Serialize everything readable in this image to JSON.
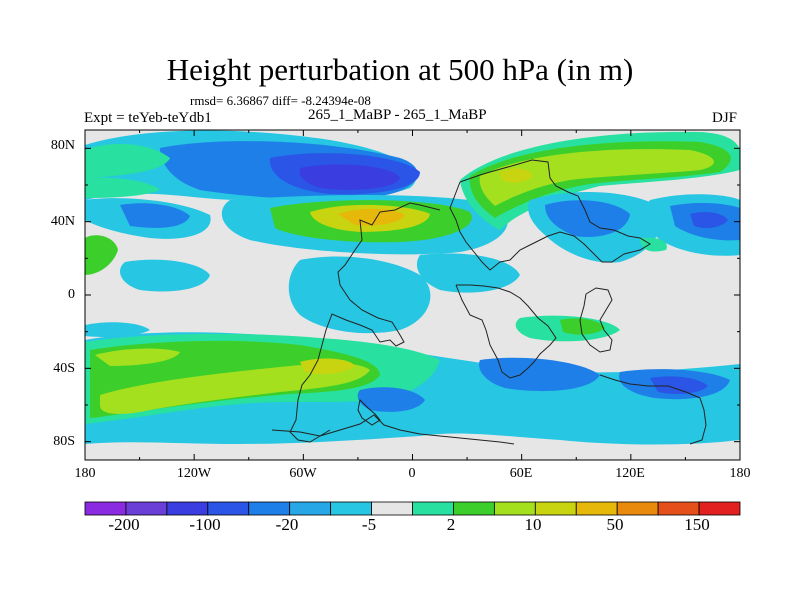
{
  "title": "Height perturbation at 500 hPa (in m)",
  "stats": "rmsd= 6.36867 diff= -8.24394e-08",
  "experiment": "Expt = teYeb-teYdb1",
  "case": "265_1_MaBP - 265_1_MaBP",
  "season": "DJF",
  "lat_labels": [
    "80N",
    "40N",
    "0",
    "40S",
    "80S"
  ],
  "lon_labels": [
    "180",
    "120W",
    "60W",
    "0",
    "60E",
    "120E",
    "180"
  ],
  "colorbar": {
    "colors": [
      "#8a2be2",
      "#6a3fd8",
      "#3a3ee0",
      "#2a55e6",
      "#1e7fe8",
      "#27a7e6",
      "#27c6e2",
      "#e6e6e6",
      "#28e0a0",
      "#3ccf2c",
      "#a5e01f",
      "#c8d40f",
      "#e5b80a",
      "#e98a0d",
      "#e5501a",
      "#e2201f"
    ],
    "labels": [
      "-200",
      "-100",
      "-20",
      "-5",
      "2",
      "10",
      "50",
      "150"
    ]
  },
  "colors": {
    "neutral": "#e6e6e6",
    "light_blue": "#27c6e2",
    "mid_blue": "#1e7fe8",
    "blue": "#2a55e6",
    "dark_blue": "#3a3ee0",
    "teal": "#28e0a0",
    "green": "#3ccf2c",
    "light_green": "#a5e01f",
    "yellow": "#c8d40f",
    "gold": "#e5b80a"
  }
}
